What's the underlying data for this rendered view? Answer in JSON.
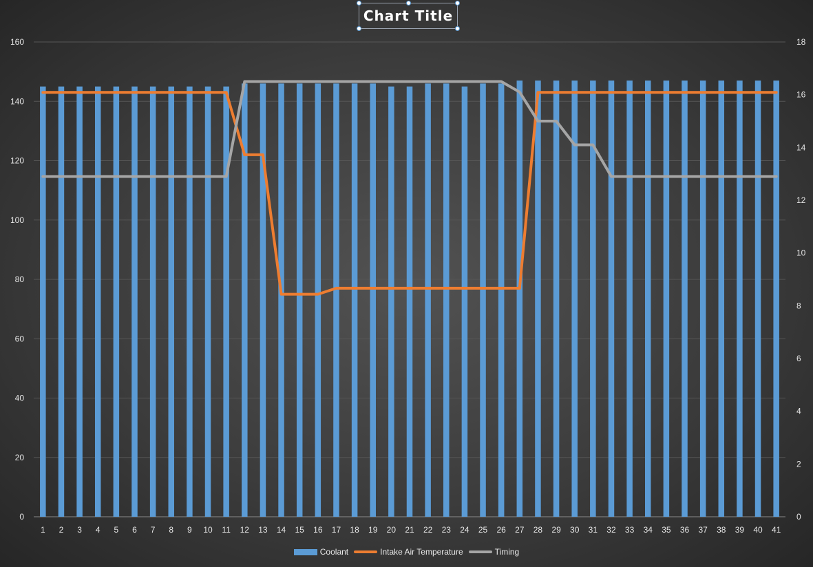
{
  "chart_data": {
    "type": "bar",
    "title": "Chart Title",
    "categories": [
      "1",
      "2",
      "3",
      "4",
      "5",
      "6",
      "7",
      "8",
      "9",
      "10",
      "11",
      "12",
      "13",
      "14",
      "15",
      "16",
      "17",
      "18",
      "19",
      "20",
      "21",
      "22",
      "23",
      "24",
      "25",
      "26",
      "27",
      "28",
      "29",
      "30",
      "31",
      "32",
      "33",
      "34",
      "35",
      "36",
      "37",
      "38",
      "39",
      "40",
      "41"
    ],
    "series": [
      {
        "name": "Coolant",
        "type": "bar",
        "axis": "left",
        "color": "#5b9bd5",
        "values": [
          145,
          145,
          145,
          145,
          145,
          145,
          145,
          145,
          145,
          145,
          145,
          146,
          146,
          146,
          146,
          146,
          146,
          146,
          146,
          145,
          145,
          146,
          146,
          145,
          146,
          146,
          147,
          147,
          147,
          147,
          147,
          147,
          147,
          147,
          147,
          147,
          147,
          147,
          147,
          147,
          147
        ]
      },
      {
        "name": "Intake Air Temperature",
        "type": "line",
        "axis": "left",
        "color": "#ed7d31",
        "values": [
          143,
          143,
          143,
          143,
          143,
          143,
          143,
          143,
          143,
          143,
          143,
          122,
          122,
          75,
          75,
          75,
          77,
          77,
          77,
          77,
          77,
          77,
          77,
          77,
          77,
          77,
          77,
          143,
          143,
          143,
          143,
          143,
          143,
          143,
          143,
          143,
          143,
          143,
          143,
          143,
          143
        ]
      },
      {
        "name": "Timing",
        "type": "line",
        "axis": "right",
        "color": "#a5a5a5",
        "values": [
          12.9,
          12.9,
          12.9,
          12.9,
          12.9,
          12.9,
          12.9,
          12.9,
          12.9,
          12.9,
          12.9,
          16.5,
          16.5,
          16.5,
          16.5,
          16.5,
          16.5,
          16.5,
          16.5,
          16.5,
          16.5,
          16.5,
          16.5,
          16.5,
          16.5,
          16.5,
          16.1,
          15,
          15,
          14.1,
          14.1,
          12.9,
          12.9,
          12.9,
          12.9,
          12.9,
          12.9,
          12.9,
          12.9,
          12.9,
          12.9
        ]
      }
    ],
    "y_left": {
      "min": 0,
      "max": 160,
      "step": 20
    },
    "y_right": {
      "min": 0,
      "max": 18,
      "step": 2
    },
    "grid": true,
    "legend_position": "bottom"
  }
}
